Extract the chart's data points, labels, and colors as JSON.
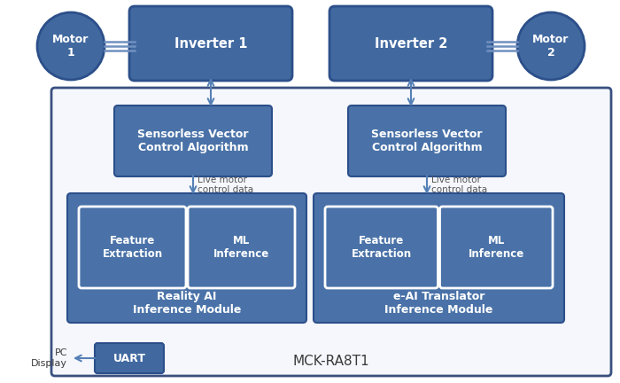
{
  "bg_color": "#ffffff",
  "box_blue_dark": "#4169a0",
  "box_blue_mid": "#4a72a8",
  "box_blue_light": "#5580b5",
  "border_dark": "#2c4f8a",
  "board_bg": "#f5f7fc",
  "board_border": "#3a5080",
  "text_white": "#ffffff",
  "text_dark": "#3a3a3a",
  "text_label": "#555555",
  "arrow_color": "#5580b5",
  "title": "MCK-RA8T1",
  "motor1_label": "Motor\n1",
  "motor2_label": "Motor\n2",
  "inverter1_label": "Inverter 1",
  "inverter2_label": "Inverter 2",
  "svca_label": "Sensorless Vector\nControl Algorithm",
  "live_data_label": "Live motor\ncontrol data",
  "reality_ai_label": "Reality AI\nInference Module",
  "eai_label": "e-AI Translator\nInference Module",
  "feature_label": "Feature\nExtraction",
  "ml_label": "ML\nInference",
  "uart_label": "UART",
  "pc_display_label": "PC\nDisplay"
}
